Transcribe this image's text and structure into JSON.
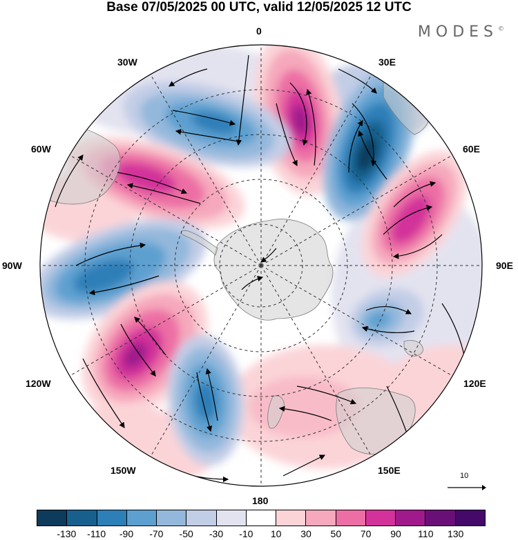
{
  "header": {
    "title": "Base 07/05/2025 00 UTC, valid 12/05/2025 12 UTC",
    "brand": "MODES",
    "brand_mark": "©"
  },
  "map": {
    "projection": "south polar stereographic",
    "longitude_labels": {
      "lon_0": "0",
      "lon_30e": "30E",
      "lon_60e": "60E",
      "lon_90e": "90E",
      "lon_120e": "120E",
      "lon_150e": "150E",
      "lon_180": "180",
      "lon_150w": "150W",
      "lon_120w": "120W",
      "lon_90w": "90W",
      "lon_60w": "60W",
      "lon_30w": "30W"
    },
    "reference_vector_label": "10"
  },
  "colorbar": {
    "ticks": [
      "-130",
      "-110",
      "-90",
      "-70",
      "-50",
      "-30",
      "-10",
      "10",
      "30",
      "50",
      "70",
      "90",
      "110",
      "130"
    ],
    "colors": [
      "#0e3a5c",
      "#17608e",
      "#2d7fb8",
      "#5da0d0",
      "#93b8dc",
      "#c2cde6",
      "#e3e3f0",
      "#ffffff",
      "#fbd4d8",
      "#f6a8bc",
      "#ec6ea4",
      "#d3329a",
      "#a01a8c",
      "#6a0f78",
      "#45096a"
    ]
  }
}
